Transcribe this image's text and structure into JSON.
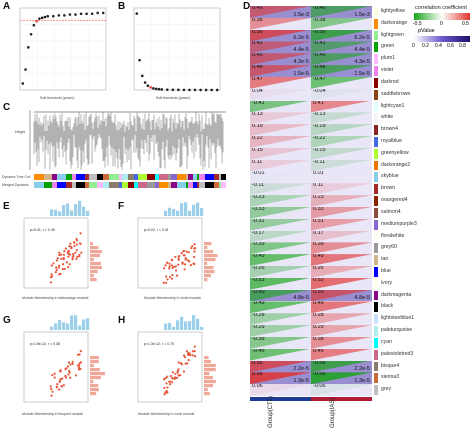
{
  "panels": {
    "A": {
      "label": "A",
      "xlabel": "Soft threshold (power)",
      "ylabel": "Scale Free Topology Model Fit, signed R^2",
      "points": [
        [
          1,
          0.08
        ],
        [
          2,
          0.25
        ],
        [
          3,
          0.52
        ],
        [
          4,
          0.68
        ],
        [
          5,
          0.79
        ],
        [
          6,
          0.84
        ],
        [
          7,
          0.87
        ],
        [
          8,
          0.88
        ],
        [
          9,
          0.89
        ],
        [
          10,
          0.9
        ],
        [
          12,
          0.9
        ],
        [
          14,
          0.91
        ],
        [
          16,
          0.91
        ],
        [
          18,
          0.92
        ],
        [
          20,
          0.92
        ],
        [
          22,
          0.93
        ],
        [
          24,
          0.93
        ],
        [
          26,
          0.93
        ],
        [
          28,
          0.94
        ],
        [
          30,
          0.94
        ]
      ],
      "selected_power": 6,
      "threshold": 0.85
    },
    "B": {
      "label": "B",
      "xlabel": "Soft threshold (power)",
      "ylabel": "Mean Connectivity",
      "points": [
        [
          1,
          2050
        ],
        [
          2,
          800
        ],
        [
          3,
          380
        ],
        [
          4,
          200
        ],
        [
          5,
          115
        ],
        [
          6,
          70
        ],
        [
          7,
          45
        ],
        [
          8,
          30
        ],
        [
          9,
          21
        ],
        [
          10,
          16
        ],
        [
          12,
          9
        ],
        [
          14,
          6
        ],
        [
          16,
          4
        ],
        [
          18,
          3
        ],
        [
          20,
          2
        ],
        [
          22,
          2
        ],
        [
          24,
          1
        ],
        [
          26,
          1
        ],
        [
          28,
          1
        ],
        [
          30,
          1
        ]
      ],
      "selected_power": 6
    },
    "C": {
      "label": "C",
      "ylabel": "Height",
      "row_labels": [
        "Dynamic Tree Cut",
        "Merged Dynamic"
      ]
    },
    "D": {
      "label": "D",
      "legend_title": "correlation coefficient",
      "legend_ticks_a": [
        "-0.5",
        "0",
        "0.5"
      ],
      "legend_ticks_b": [
        "0",
        "0.2",
        "0.4",
        "0.6",
        "0.8"
      ],
      "legend_pvalue": "pValue",
      "col_labels": [
        "Group(CTL)",
        "Group(IAS)"
      ]
    },
    "E": {
      "label": "E",
      "stat": "p=0.01, r = 0.49",
      "xlabel": "Module Membership in darkorange module",
      "ylabel": "Gene significance for IAS(MM)"
    },
    "F": {
      "label": "F",
      "stat": "p=0.02, r = 0.31",
      "xlabel": "Module Membership in violet module",
      "ylabel": "Gene significance for IAS(MM)"
    },
    "G": {
      "label": "G",
      "stat": "p=1.5e-10, r = 0.38",
      "xlabel": "Module Membership in bisque4 module",
      "ylabel": "Gene significance for IAS(MM)"
    },
    "H": {
      "label": "H",
      "stat": "p=1.3e-12, r = 0.75",
      "xlabel": "Module Membership in coral module",
      "ylabel": "Gene significance for IAS(MM)"
    }
  },
  "matrix": [
    {
      "module": "lightyellow",
      "color": "#ffffe0",
      "l_r": "0.46",
      "l_p": "1.5e-3",
      "r_r": "-0.46",
      "r_p": "1.5e-3"
    },
    {
      "module": "darkorange",
      "color": "#ff8c00",
      "l_r": "0.38",
      "l_p": "",
      "r_r": "-0.38",
      "r_p": ""
    },
    {
      "module": "lightgreen",
      "color": "#90ee90",
      "l_r": "0.56",
      "l_p": "6.2e-5",
      "r_r": "-0.56",
      "r_p": "6.2e-5"
    },
    {
      "module": "green",
      "color": "#00a000",
      "l_r": "0.42",
      "l_p": "4.4e-5",
      "r_r": "-0.42",
      "r_p": "4.4e-5"
    },
    {
      "module": "plum1",
      "color": "#ffbbff",
      "l_r": "0.45",
      "l_p": "4.3e-5",
      "r_r": "-0.45",
      "r_p": "4.3e-5"
    },
    {
      "module": "violet",
      "color": "#ee82ee",
      "l_r": "0.48",
      "l_p": "1.5e-5",
      "r_r": "-0.48",
      "r_p": "1.5e-5"
    },
    {
      "module": "darkred",
      "color": "#8b0000",
      "l_r": "0.47",
      "l_p": "",
      "r_r": "-0.47",
      "r_p": ""
    },
    {
      "module": "saddlebrown",
      "color": "#8b4513",
      "l_r": "0.04",
      "l_p": "",
      "r_r": "-0.04",
      "r_p": ""
    },
    {
      "module": "lightcyan1",
      "color": "#e0ffff",
      "l_r": "-0.41",
      "l_p": "",
      "r_r": "0.41",
      "r_p": ""
    },
    {
      "module": "white",
      "color": "#f5f5f5",
      "l_r": "0.13",
      "l_p": "",
      "r_r": "-0.13",
      "r_p": ""
    },
    {
      "module": "brown4",
      "color": "#8b2323",
      "l_r": "0.19",
      "l_p": "",
      "r_r": "-0.19",
      "r_p": ""
    },
    {
      "module": "royalblue",
      "color": "#4169e1",
      "l_r": "0.22",
      "l_p": "",
      "r_r": "-0.22",
      "r_p": ""
    },
    {
      "module": "greenyellow",
      "color": "#adff2f",
      "l_r": "0.15",
      "l_p": "",
      "r_r": "-0.15",
      "r_p": ""
    },
    {
      "module": "darkorange2",
      "color": "#ee7600",
      "l_r": "0.11",
      "l_p": "",
      "r_r": "-0.11",
      "r_p": ""
    },
    {
      "module": "skyblue",
      "color": "#87ceeb",
      "l_r": "-0.01",
      "l_p": "",
      "r_r": "0.01",
      "r_p": ""
    },
    {
      "module": "brown",
      "color": "#a52a2a",
      "l_r": "-0.11",
      "l_p": "",
      "r_r": "0.11",
      "r_p": ""
    },
    {
      "module": "orangered4",
      "color": "#8b2500",
      "l_r": "-0.23",
      "l_p": "",
      "r_r": "0.23",
      "r_p": ""
    },
    {
      "module": "salmon4",
      "color": "#8b4c39",
      "l_r": "-0.33",
      "l_p": "",
      "r_r": "0.33",
      "r_p": ""
    },
    {
      "module": "mediumpurple3",
      "color": "#8968cd",
      "l_r": "-0.31",
      "l_p": "",
      "r_r": "0.31",
      "r_p": ""
    },
    {
      "module": "floralwhite",
      "color": "#fffaf0",
      "l_r": "-0.17",
      "l_p": "",
      "r_r": "0.17",
      "r_p": ""
    },
    {
      "module": "grey60",
      "color": "#999999",
      "l_r": "-0.39",
      "l_p": "",
      "r_r": "0.39",
      "r_p": ""
    },
    {
      "module": "tan",
      "color": "#d2b48c",
      "l_r": "-0.49",
      "l_p": "",
      "r_r": "0.49",
      "r_p": ""
    },
    {
      "module": "blue",
      "color": "#0000ff",
      "l_r": "-0.26",
      "l_p": "",
      "r_r": "0.26",
      "r_p": ""
    },
    {
      "module": "ivory",
      "color": "#fffff0",
      "l_r": "-0.53",
      "l_p": "",
      "r_r": "0.53",
      "r_p": ""
    },
    {
      "module": "darkmagenta",
      "color": "#8b008b",
      "l_r": "-0.50",
      "l_p": "4.8e-5",
      "r_r": "0.50",
      "r_p": "4.8e-5"
    },
    {
      "module": "black",
      "color": "#000000",
      "l_r": "-0.49",
      "l_p": "",
      "r_r": "0.49",
      "r_p": ""
    },
    {
      "module": "lightsteelblue1",
      "color": "#cae1ff",
      "l_r": "-0.28",
      "l_p": "",
      "r_r": "0.28",
      "r_p": ""
    },
    {
      "module": "paleturquoise",
      "color": "#afeeee",
      "l_r": "-0.29",
      "l_p": "",
      "r_r": "0.29",
      "r_p": ""
    },
    {
      "module": "cyan",
      "color": "#00ffff",
      "l_r": "-0.38",
      "l_p": "",
      "r_r": "0.38",
      "r_p": ""
    },
    {
      "module": "palevioletred3",
      "color": "#cd6889",
      "l_r": "-0.46",
      "l_p": "",
      "r_r": "0.46",
      "r_p": ""
    },
    {
      "module": "bisque4",
      "color": "#8b7d6b",
      "l_r": "0.56",
      "l_p": "2.2e-5",
      "r_r": "-0.56",
      "r_p": "2.2e-5"
    },
    {
      "module": "sienna3",
      "color": "#cd6839",
      "l_r": "0.66",
      "l_p": "1.3e-5",
      "r_r": "-0.66",
      "r_p": "1.3e-5"
    },
    {
      "module": "grey",
      "color": "#bebebe",
      "l_r": "0.06",
      "l_p": "",
      "r_r": "-0.06",
      "r_p": ""
    }
  ]
}
